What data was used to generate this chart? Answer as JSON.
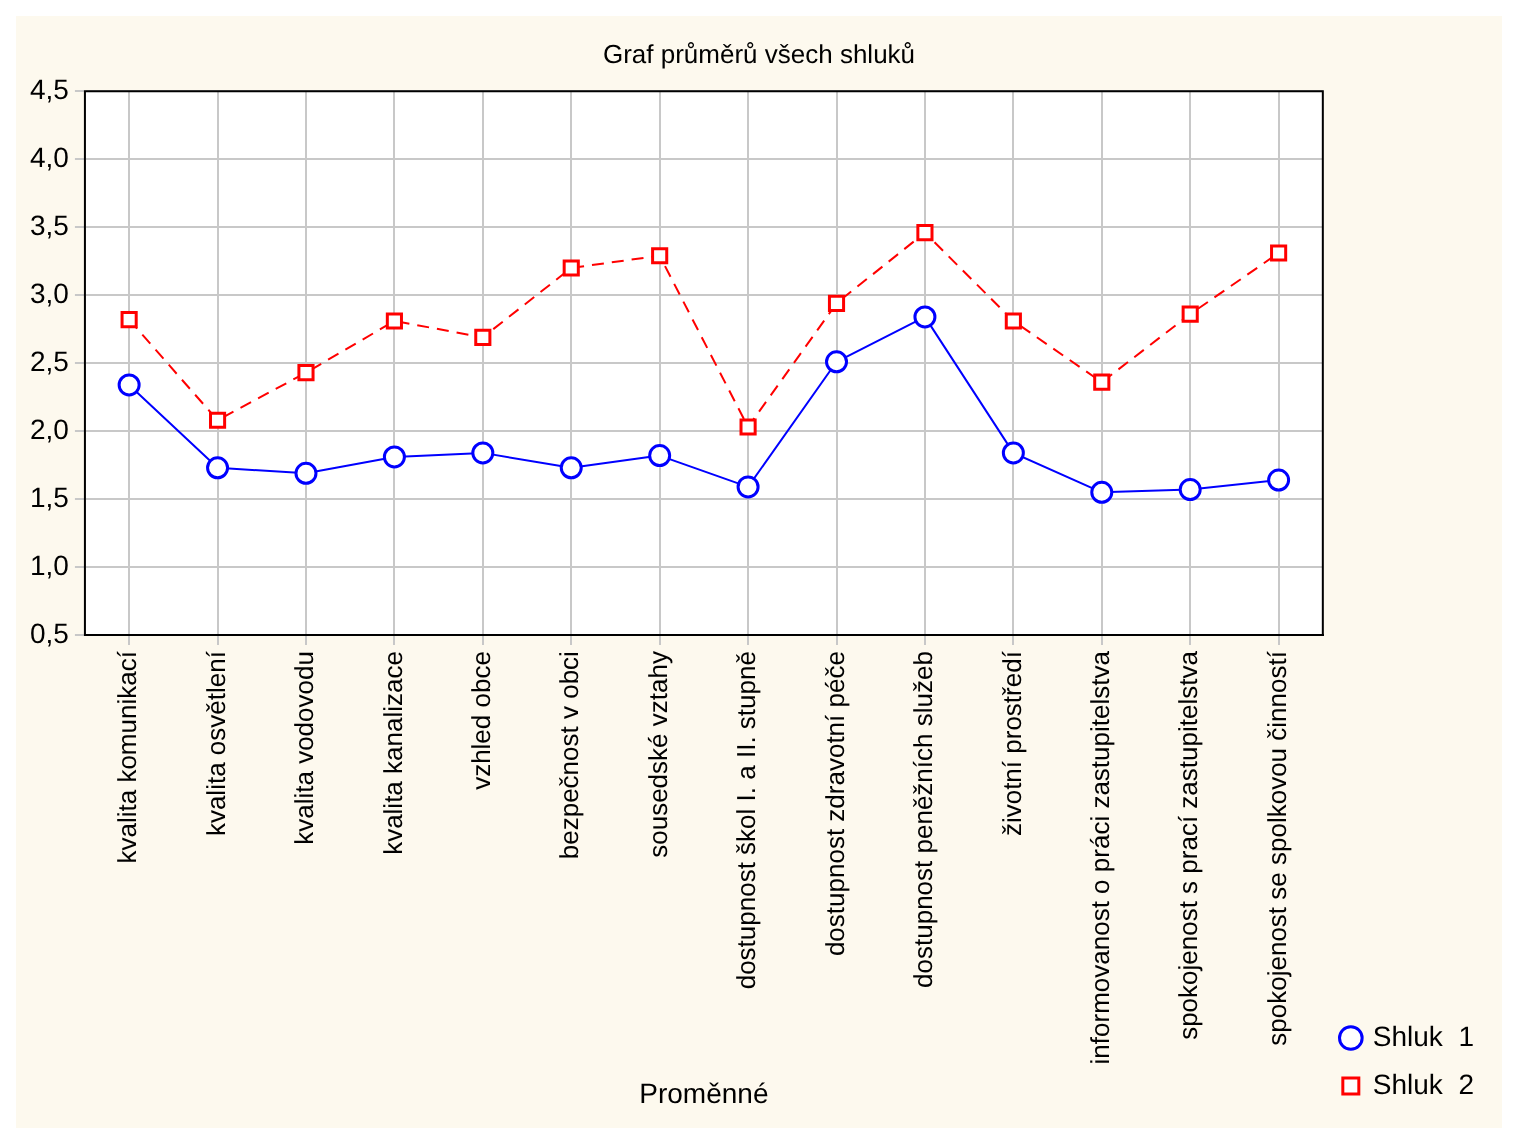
{
  "chart_data": {
    "type": "line",
    "title": "Graf průměrů všech shluků",
    "xlabel": "Proměnné",
    "categories": [
      "kvalita komunikací",
      "kvalita osvětlení",
      "kvalita vodovodu",
      "kvalita kanalizace",
      "vzhled obce",
      "bezpečnost v obci",
      "sousedské vztahy",
      "dostupnost škol I. a II. stupně",
      "dostupnost zdravotní péče",
      "dostupnost peněžních služeb",
      "životní prostředí",
      "informovanost o práci zastupitelstva",
      "spokojenost s prací zastupitelstva",
      "spokojenost se spolkovou činností"
    ],
    "series": [
      {
        "name": "Shluk  1",
        "color": "#0000ff",
        "marker": "circle",
        "line_style": "solid",
        "values": [
          2.34,
          1.73,
          1.69,
          1.81,
          1.84,
          1.73,
          1.82,
          1.59,
          2.51,
          2.84,
          1.84,
          1.55,
          1.57,
          1.64
        ]
      },
      {
        "name": "Shluk  2",
        "color": "#ff0000",
        "marker": "square",
        "line_style": "dashed",
        "values": [
          2.82,
          2.08,
          2.43,
          2.81,
          2.69,
          3.2,
          3.29,
          2.03,
          2.94,
          3.46,
          2.81,
          2.36,
          2.86,
          3.31
        ]
      }
    ],
    "ylim": [
      0.5,
      4.5
    ],
    "yticks": [
      {
        "value": 0.5,
        "label": "0,5"
      },
      {
        "value": 1,
        "label": "1,0"
      },
      {
        "value": 1.5,
        "label": "1,5"
      },
      {
        "value": 2,
        "label": "2,0"
      },
      {
        "value": 2.5,
        "label": "2,5"
      },
      {
        "value": 3,
        "label": "3,0"
      },
      {
        "value": 3.5,
        "label": "3,5"
      },
      {
        "value": 4,
        "label": "4,0"
      },
      {
        "value": 4.5,
        "label": "4,5"
      }
    ],
    "grid": true,
    "legend": "bottom right"
  }
}
